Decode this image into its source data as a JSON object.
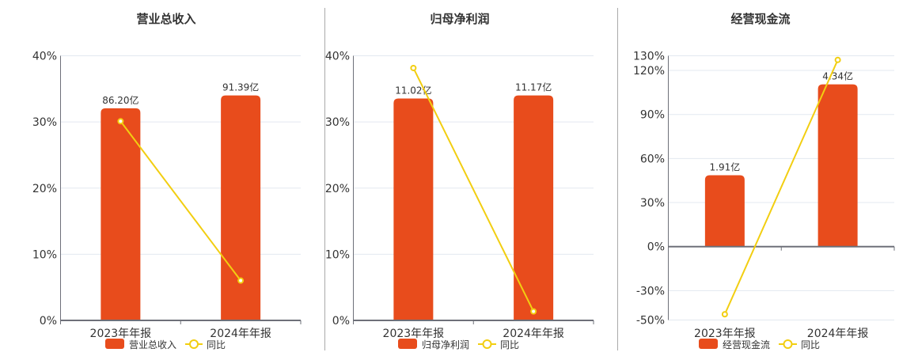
{
  "colors": {
    "bar": "#E84C1C",
    "line": "#F2CE11",
    "grid": "#E3E8F0",
    "axis": "#6E7079",
    "separator": "#AAAAAA",
    "text": "#333333"
  },
  "chart_data": [
    {
      "type": "bar+line",
      "title": "营业总收入",
      "categories": [
        "2023年年报",
        "2024年年报"
      ],
      "series": [
        {
          "name": "营业总收入",
          "type": "bar",
          "unit": "亿",
          "values": [
            86.2,
            91.39
          ],
          "labels": [
            "86.20亿",
            "91.39亿"
          ]
        },
        {
          "name": "同比",
          "type": "line",
          "unit": "%",
          "values": [
            30.1,
            6.02
          ]
        }
      ],
      "y_axis": {
        "ylim": [
          0,
          40
        ],
        "ticks": [
          0,
          10,
          20,
          30,
          40
        ],
        "labels": [
          "0%",
          "10%",
          "20%",
          "30%",
          "40%"
        ]
      },
      "bar_scale": 0.85,
      "grid": true,
      "legend_position": "bottom"
    },
    {
      "type": "bar+line",
      "title": "归母净利润",
      "categories": [
        "2023年年报",
        "2024年年报"
      ],
      "series": [
        {
          "name": "归母净利润",
          "type": "bar",
          "unit": "亿",
          "values": [
            11.02,
            11.17
          ],
          "labels": [
            "11.02亿",
            "11.17亿"
          ]
        },
        {
          "name": "同比",
          "type": "line",
          "unit": "%",
          "values": [
            38.15,
            1.36
          ]
        }
      ],
      "y_axis": {
        "ylim": [
          0,
          40
        ],
        "ticks": [
          0,
          10,
          20,
          30,
          40
        ],
        "labels": [
          "0%",
          "10%",
          "20%",
          "30%",
          "40%"
        ]
      },
      "bar_scale": 0.85,
      "grid": true,
      "legend_position": "bottom"
    },
    {
      "type": "bar+line",
      "title": "经营现金流",
      "categories": [
        "2023年年报",
        "2024年年报"
      ],
      "series": [
        {
          "name": "经营现金流",
          "type": "bar",
          "unit": "亿",
          "values": [
            1.91,
            4.34
          ],
          "labels": [
            "1.91亿",
            "4.34亿"
          ]
        },
        {
          "name": "同比",
          "type": "line",
          "unit": "%",
          "values": [
            -46.1,
            127.2
          ]
        }
      ],
      "y_axis": {
        "ylim": [
          -50,
          130
        ],
        "ticks": [
          -50,
          -30,
          0,
          30,
          60,
          90,
          120,
          130
        ],
        "labels": [
          "-50%",
          "-30%",
          "0%",
          "30%",
          "60%",
          "90%",
          "120%",
          "130%"
        ]
      },
      "bar_scale": 0.85,
      "grid": true,
      "legend_position": "bottom"
    }
  ]
}
